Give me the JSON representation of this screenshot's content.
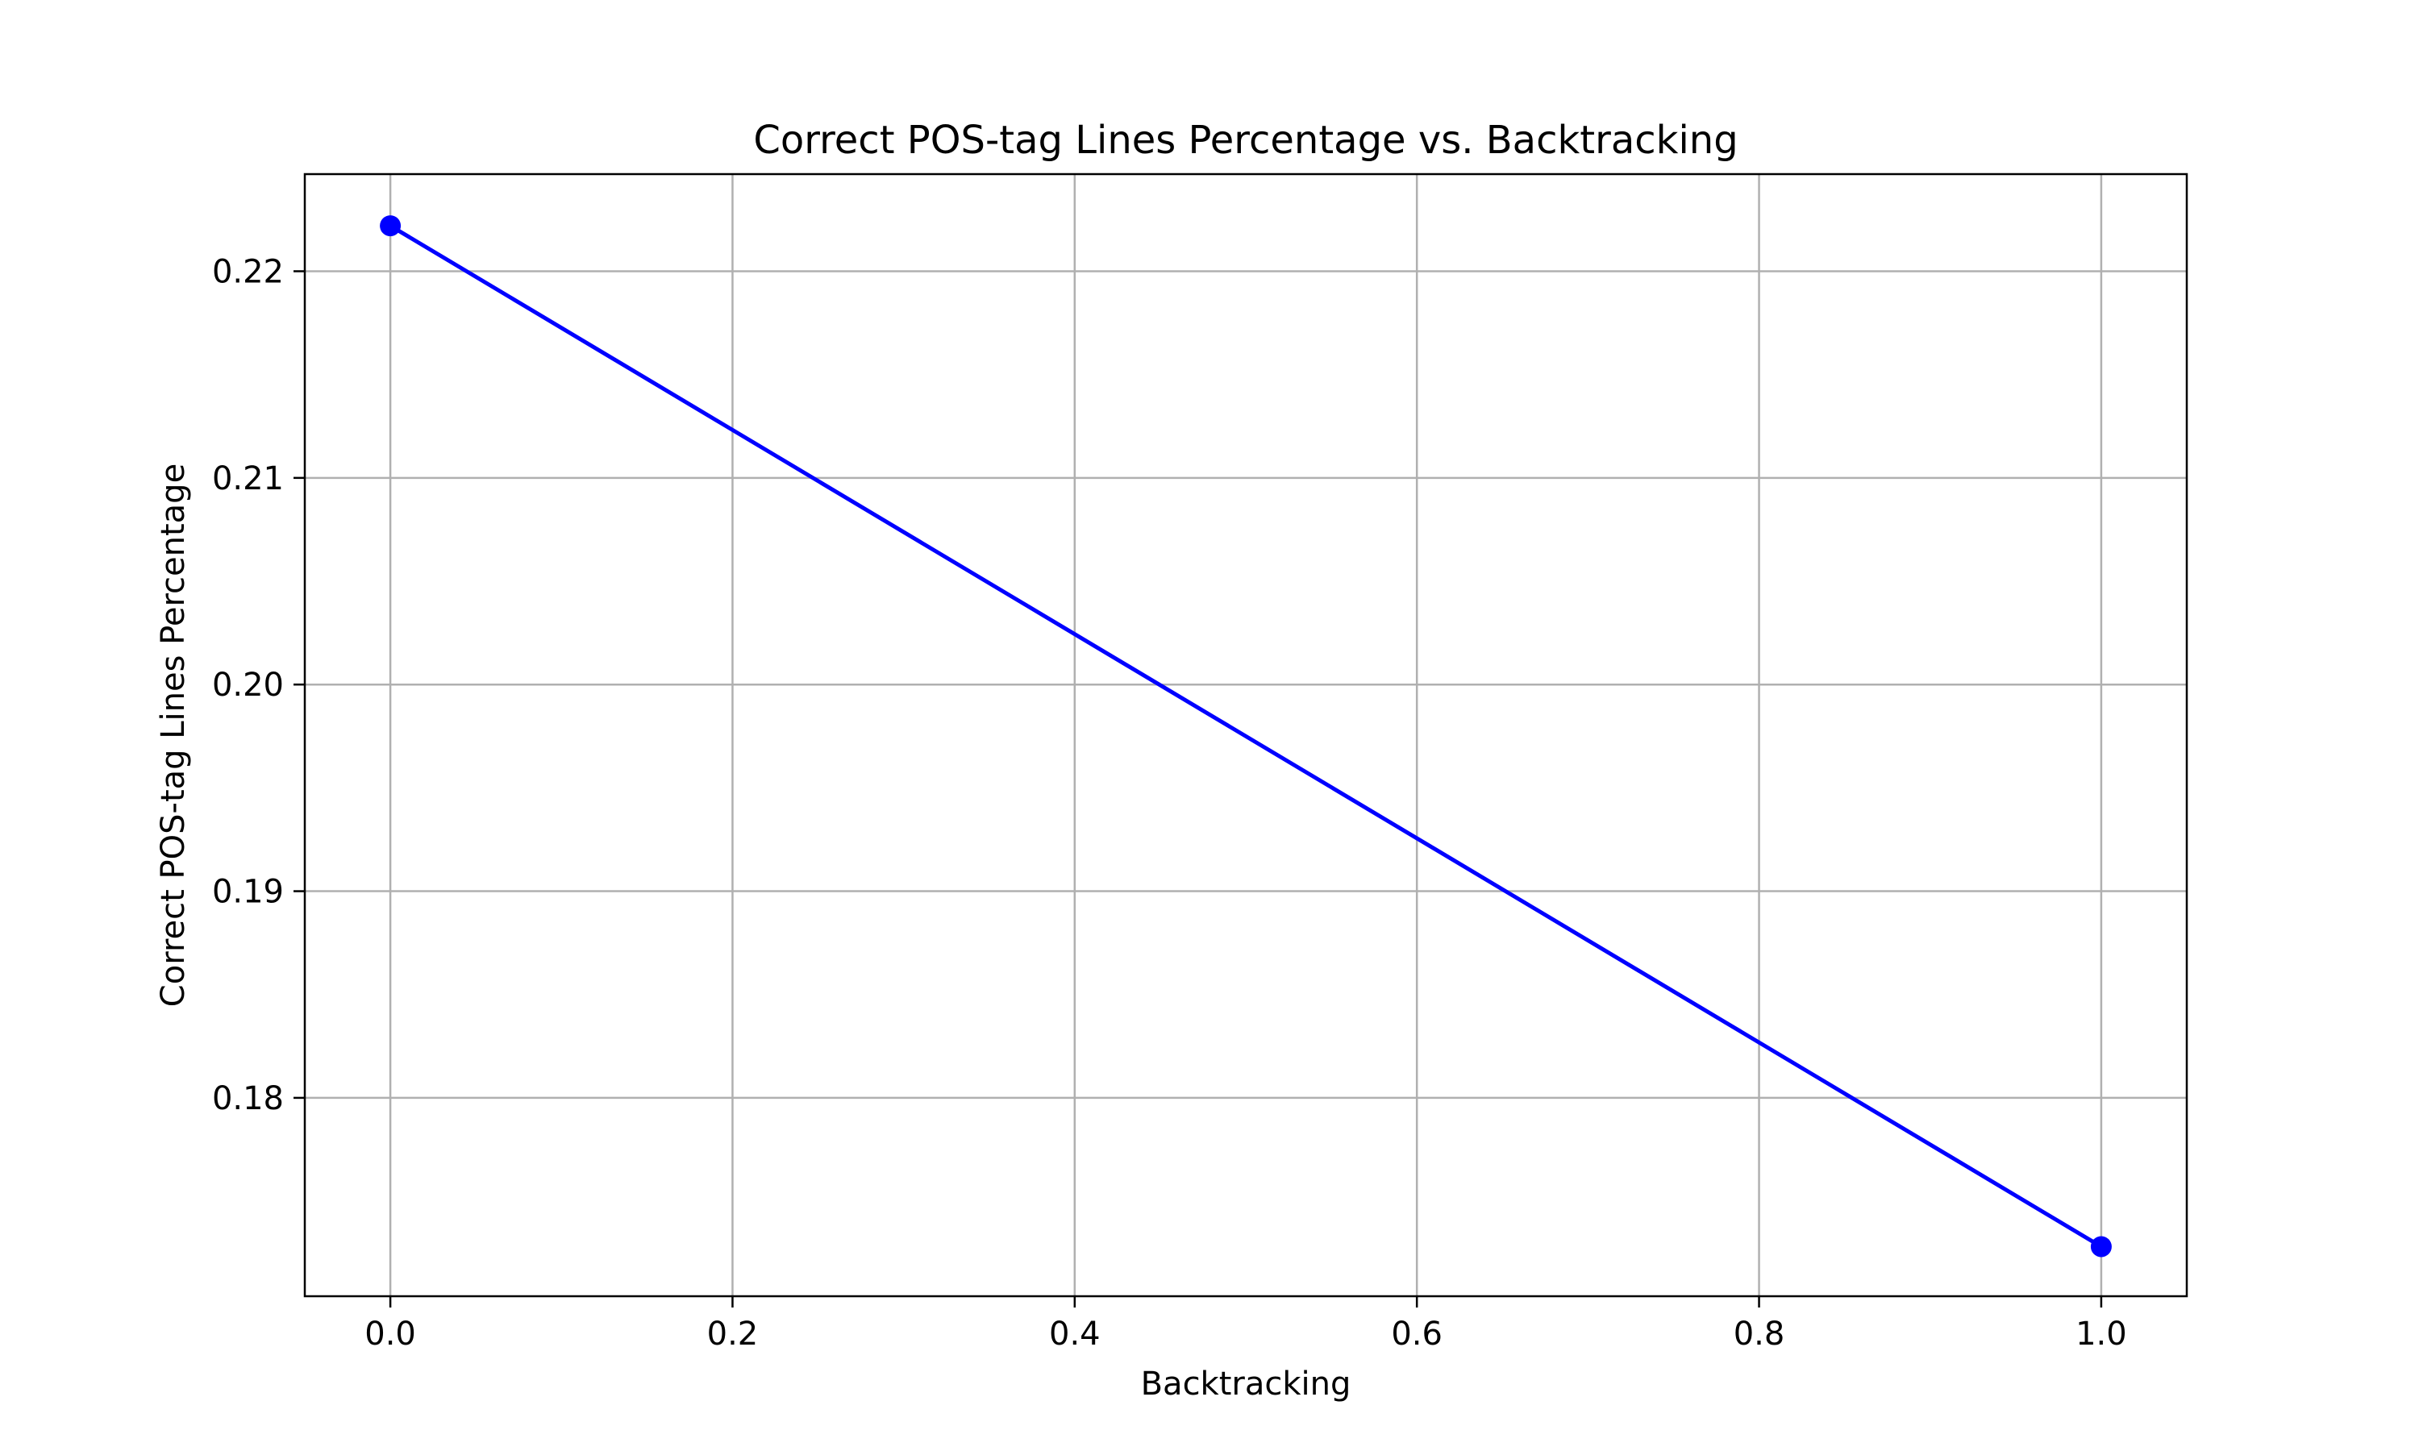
{
  "chart_data": {
    "type": "line",
    "title": "Correct POS-tag Lines Percentage vs. Backtracking",
    "xlabel": "Backtracking",
    "ylabel": "Correct POS-tag Lines Percentage",
    "x": [
      0.0,
      1.0
    ],
    "series": [
      {
        "values": [
          0.2222,
          0.1728
        ],
        "color": "#0000ff",
        "marker": "circle"
      }
    ],
    "xlim": [
      -0.05,
      1.05
    ],
    "ylim": [
      0.1704,
      0.2247
    ],
    "xticks": [
      0.0,
      0.2,
      0.4,
      0.6,
      0.8,
      1.0
    ],
    "xtick_labels": [
      "0.0",
      "0.2",
      "0.4",
      "0.6",
      "0.8",
      "1.0"
    ],
    "yticks": [
      0.18,
      0.19,
      0.2,
      0.21,
      0.22
    ],
    "ytick_labels": [
      "0.18",
      "0.19",
      "0.20",
      "0.21",
      "0.22"
    ],
    "grid": true,
    "legend": false
  },
  "colors": {
    "line": "#0000ff",
    "grid": "#b0b0b0",
    "axes": "#000000"
  }
}
